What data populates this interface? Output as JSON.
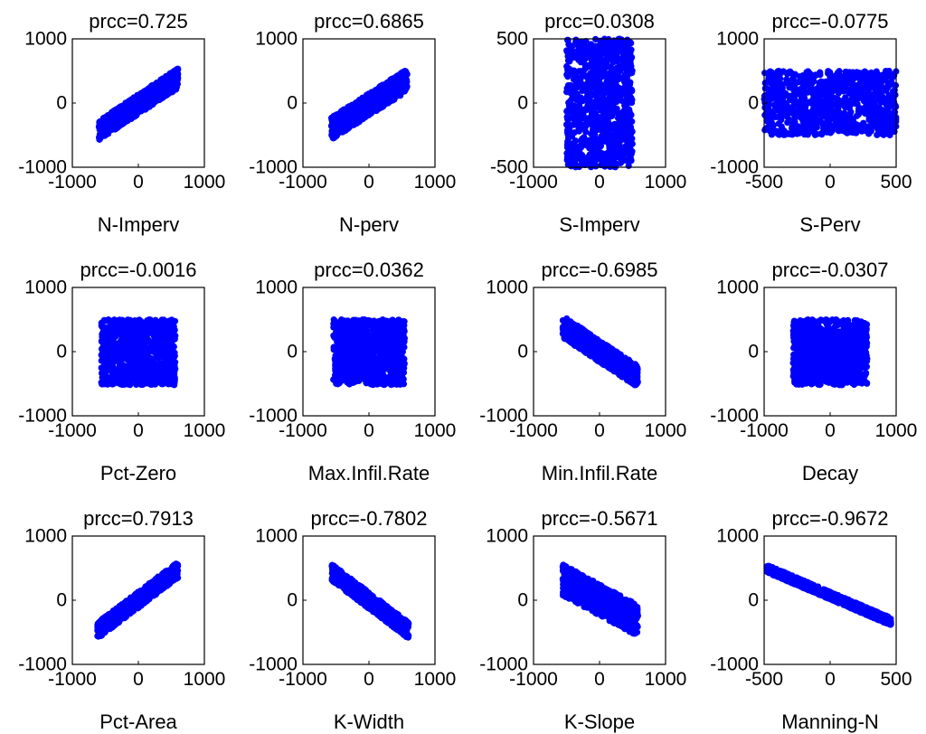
{
  "chart_data": [
    {
      "type": "scatter",
      "title": "prcc=0.725",
      "xlabel": "N-Imperv",
      "xticks": [
        "-1000",
        "0",
        "1000"
      ],
      "yticks": [
        "-1000",
        "0",
        "1000"
      ],
      "xlim": [
        -1000,
        1000
      ],
      "ylim": [
        -1000,
        1000
      ],
      "x_extent": [
        -600,
        600
      ],
      "y_extent": [
        -580,
        540
      ],
      "shape": "rhombus",
      "rho": 0.725,
      "marker_color": "#0000FF"
    },
    {
      "type": "scatter",
      "title": "prcc=0.6865",
      "xlabel": "N-perv",
      "xticks": [
        "-1000",
        "0",
        "1000"
      ],
      "yticks": [
        "-1000",
        "0",
        "1000"
      ],
      "xlim": [
        -1000,
        1000
      ],
      "ylim": [
        -1000,
        1000
      ],
      "x_extent": [
        -570,
        580
      ],
      "y_extent": [
        -570,
        530
      ],
      "shape": "rhombus",
      "rho": 0.6865,
      "marker_color": "#0000FF"
    },
    {
      "type": "scatter",
      "title": "prcc=0.0308",
      "xlabel": "S-Imperv",
      "xticks": [
        "-1000",
        "0",
        "1000"
      ],
      "yticks": [
        "-500",
        "0",
        "500"
      ],
      "xlim": [
        -1000,
        1000
      ],
      "ylim": [
        -500,
        500
      ],
      "x_extent": [
        -500,
        500
      ],
      "y_extent": [
        -500,
        500
      ],
      "shape": "box",
      "rho": 0.0308,
      "marker_color": "#0000FF"
    },
    {
      "type": "scatter",
      "title": "prcc=-0.0775",
      "xlabel": "S-Perv",
      "xticks": [
        "-500",
        "0",
        "500"
      ],
      "yticks": [
        "-1000",
        "0",
        "1000"
      ],
      "xlim": [
        -500,
        500
      ],
      "ylim": [
        -1000,
        1000
      ],
      "x_extent": [
        -500,
        500
      ],
      "y_extent": [
        -500,
        500
      ],
      "shape": "box",
      "rho": -0.0775,
      "marker_color": "#0000FF"
    },
    {
      "type": "scatter",
      "title": "prcc=-0.0016",
      "xlabel": "Pct-Zero",
      "xticks": [
        "-1000",
        "0",
        "1000"
      ],
      "yticks": [
        "-1000",
        "0",
        "1000"
      ],
      "xlim": [
        -1000,
        1000
      ],
      "ylim": [
        -1000,
        1000
      ],
      "x_extent": [
        -560,
        560
      ],
      "y_extent": [
        -520,
        500
      ],
      "shape": "box",
      "rho": -0.0016,
      "marker_color": "#0000FF"
    },
    {
      "type": "scatter",
      "title": "prcc=0.0362",
      "xlabel": "Max.Infil.Rate",
      "xticks": [
        "-1000",
        "0",
        "1000"
      ],
      "yticks": [
        "-1000",
        "0",
        "1000"
      ],
      "xlim": [
        -1000,
        1000
      ],
      "ylim": [
        -1000,
        1000
      ],
      "x_extent": [
        -540,
        540
      ],
      "y_extent": [
        -520,
        500
      ],
      "shape": "box",
      "rho": 0.0362,
      "marker_color": "#0000FF"
    },
    {
      "type": "scatter",
      "title": "prcc=-0.6985",
      "xlabel": "Min.Infil.Rate",
      "xticks": [
        "-1000",
        "0",
        "1000"
      ],
      "yticks": [
        "-1000",
        "0",
        "1000"
      ],
      "xlim": [
        -1000,
        1000
      ],
      "ylim": [
        -1000,
        1000
      ],
      "x_extent": [
        -560,
        580
      ],
      "y_extent": [
        -560,
        560
      ],
      "shape": "rhombus",
      "rho": -0.6985,
      "marker_color": "#0000FF"
    },
    {
      "type": "scatter",
      "title": "prcc=-0.0307",
      "xlabel": "Decay",
      "xticks": [
        "-1000",
        "0",
        "1000"
      ],
      "yticks": [
        "-1000",
        "0",
        "1000"
      ],
      "xlim": [
        -1000,
        1000
      ],
      "ylim": [
        -1000,
        1000
      ],
      "x_extent": [
        -560,
        560
      ],
      "y_extent": [
        -520,
        500
      ],
      "shape": "box",
      "rho": -0.0307,
      "marker_color": "#0000FF"
    },
    {
      "type": "scatter",
      "title": "prcc=0.7913",
      "xlabel": "Pct-Area",
      "xticks": [
        "-1000",
        "0",
        "1000"
      ],
      "yticks": [
        "-1000",
        "0",
        "1000"
      ],
      "xlim": [
        -1000,
        1000
      ],
      "ylim": [
        -1000,
        1000
      ],
      "x_extent": [
        -620,
        600
      ],
      "y_extent": [
        -600,
        600
      ],
      "shape": "rhombus",
      "rho": 0.7913,
      "marker_color": "#0000FF"
    },
    {
      "type": "scatter",
      "title": "prcc=-0.7802",
      "xlabel": "K-Width",
      "xticks": [
        "-1000",
        "0",
        "1000"
      ],
      "yticks": [
        "-1000",
        "0",
        "1000"
      ],
      "xlim": [
        -1000,
        1000
      ],
      "ylim": [
        -1000,
        1000
      ],
      "x_extent": [
        -560,
        600
      ],
      "y_extent": [
        -600,
        560
      ],
      "shape": "rhombus",
      "rho": -0.7802,
      "marker_color": "#0000FF"
    },
    {
      "type": "scatter",
      "title": "prcc=-0.5671",
      "xlabel": "K-Slope",
      "xticks": [
        "-1000",
        "0",
        "1000"
      ],
      "yticks": [
        "-1000",
        "0",
        "1000"
      ],
      "xlim": [
        -1000,
        1000
      ],
      "ylim": [
        -1000,
        1000
      ],
      "x_extent": [
        -560,
        580
      ],
      "y_extent": [
        -560,
        560
      ],
      "shape": "rhombus",
      "rho": -0.5671,
      "marker_color": "#0000FF"
    },
    {
      "type": "scatter",
      "title": "prcc=-0.9672",
      "xlabel": "Manning-N",
      "xticks": [
        "-500",
        "0",
        "500"
      ],
      "yticks": [
        "-1000",
        "0",
        "1000"
      ],
      "xlim": [
        -500,
        500
      ],
      "ylim": [
        -1000,
        1000
      ],
      "x_extent": [
        -480,
        460
      ],
      "y_extent": [
        -380,
        540
      ],
      "shape": "band",
      "rho": -0.9672,
      "marker_color": "#0000FF"
    }
  ]
}
